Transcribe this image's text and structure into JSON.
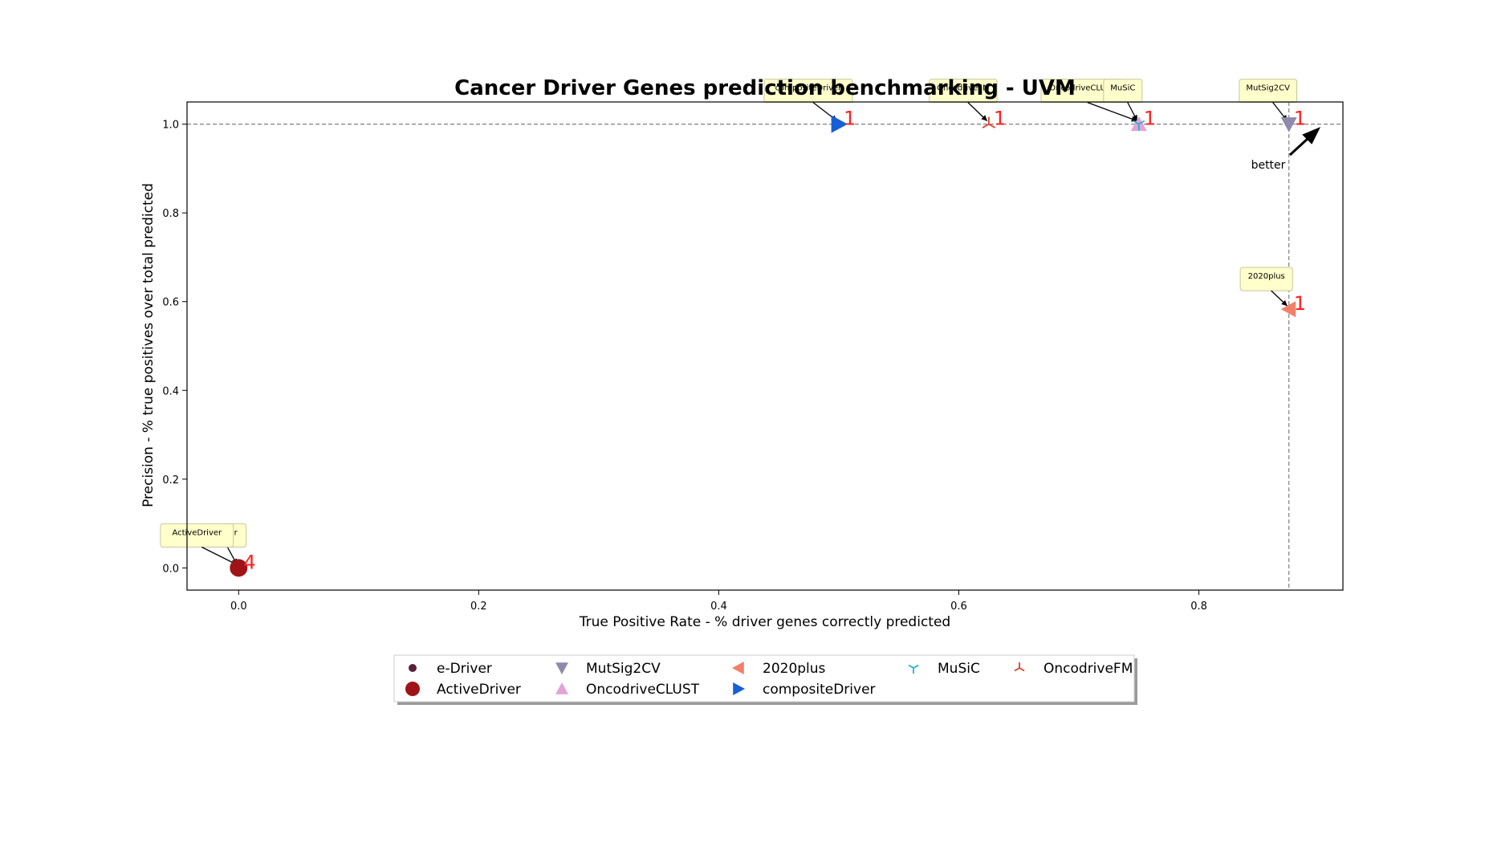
{
  "chart_data": {
    "type": "scatter",
    "title": "Cancer Driver Genes prediction benchmarking - UVM",
    "xlabel": "True Positive Rate - % driver genes correctly predicted",
    "ylabel": "Precision - % true positives over total predicted",
    "xlim": [
      -0.043,
      0.92
    ],
    "ylim": [
      -0.05,
      1.05
    ],
    "xticks": [
      {
        "value": 0.0,
        "label": "0.0"
      },
      {
        "value": 0.2,
        "label": "0.2"
      },
      {
        "value": 0.4,
        "label": "0.4"
      },
      {
        "value": 0.6,
        "label": "0.6"
      },
      {
        "value": 0.8,
        "label": "0.8"
      }
    ],
    "yticks": [
      {
        "value": 0.0,
        "label": "0.0"
      },
      {
        "value": 0.2,
        "label": "0.2"
      },
      {
        "value": 0.4,
        "label": "0.4"
      },
      {
        "value": 0.6,
        "label": "0.6"
      },
      {
        "value": 0.8,
        "label": "0.8"
      },
      {
        "value": 1.0,
        "label": "1.0"
      }
    ],
    "grid": false,
    "reference_lines": {
      "x": 0.875,
      "y": 1.0
    },
    "better_label": "better",
    "legend_position": "bottom-center",
    "series": [
      {
        "name": "e-Driver",
        "x": 0.0,
        "y": 0.0,
        "marker": "dot",
        "color": "#5a1f3c",
        "rank": "",
        "callout": "eDriver"
      },
      {
        "name": "ActiveDriver",
        "x": 0.0,
        "y": 0.0,
        "marker": "circle",
        "color": "#a01418",
        "rank": "4",
        "callout": "ActiveDriver"
      },
      {
        "name": "MutSig2CV",
        "x": 0.875,
        "y": 1.0,
        "marker": "triangle-down",
        "color": "#8f8aab",
        "rank": "1",
        "callout": "MutSig2CV"
      },
      {
        "name": "OncodriveCLUST",
        "x": 0.75,
        "y": 1.0,
        "marker": "triangle-up",
        "color": "#e3a3d7",
        "rank": "1",
        "callout": "OncodriveCLUST"
      },
      {
        "name": "2020plus",
        "x": 0.875,
        "y": 0.583,
        "marker": "triangle-left",
        "color": "#f28068",
        "rank": "1",
        "callout": "2020plus"
      },
      {
        "name": "compositeDriver",
        "x": 0.5,
        "y": 1.0,
        "marker": "triangle-right",
        "color": "#1560d6",
        "rank": "1",
        "callout": "compositeDriver"
      },
      {
        "name": "MuSiC",
        "x": 0.75,
        "y": 1.0,
        "marker": "tri-down",
        "color": "#23b5c8",
        "rank": "",
        "callout": "MuSiC"
      },
      {
        "name": "OncodriveFM",
        "x": 0.625,
        "y": 1.0,
        "marker": "tri-up",
        "color": "#d8432b",
        "rank": "1",
        "callout": "OncodriveFM"
      }
    ]
  }
}
